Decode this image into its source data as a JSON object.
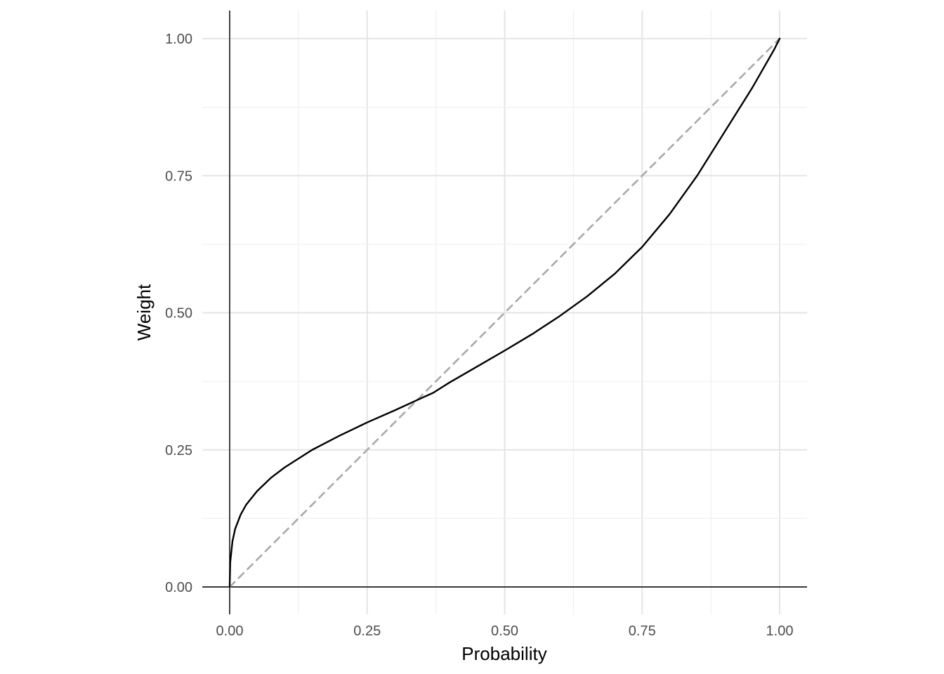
{
  "chart_data": {
    "type": "line",
    "title": "",
    "xlabel": "Probability",
    "ylabel": "Weight",
    "xlim": [
      0,
      1
    ],
    "ylim": [
      0,
      1
    ],
    "x_ticks": [
      "0.00",
      "0.25",
      "0.50",
      "0.75",
      "1.00"
    ],
    "y_ticks": [
      "0.00",
      "0.25",
      "0.50",
      "0.75",
      "1.00"
    ],
    "grid": true,
    "legend": "none",
    "series": [
      {
        "style": "solid",
        "color": "#000000",
        "x": [
          0,
          0.001,
          0.005,
          0.01,
          0.02,
          0.03,
          0.05,
          0.075,
          0.1,
          0.15,
          0.2,
          0.25,
          0.3,
          0.35,
          0.37,
          0.4,
          0.45,
          0.5,
          0.55,
          0.6,
          0.65,
          0.7,
          0.75,
          0.8,
          0.85,
          0.9,
          0.95,
          0.97,
          0.99,
          0.995,
          1
        ],
        "y": [
          0,
          0.045,
          0.083,
          0.106,
          0.132,
          0.15,
          0.175,
          0.199,
          0.218,
          0.25,
          0.276,
          0.3,
          0.322,
          0.345,
          0.354,
          0.373,
          0.402,
          0.431,
          0.461,
          0.494,
          0.53,
          0.571,
          0.62,
          0.68,
          0.75,
          0.83,
          0.91,
          0.945,
          0.98,
          0.99,
          1
        ]
      },
      {
        "style": "dashed",
        "color": "#a9a9a9",
        "x": [
          0,
          1
        ],
        "y": [
          0,
          1
        ]
      }
    ]
  }
}
